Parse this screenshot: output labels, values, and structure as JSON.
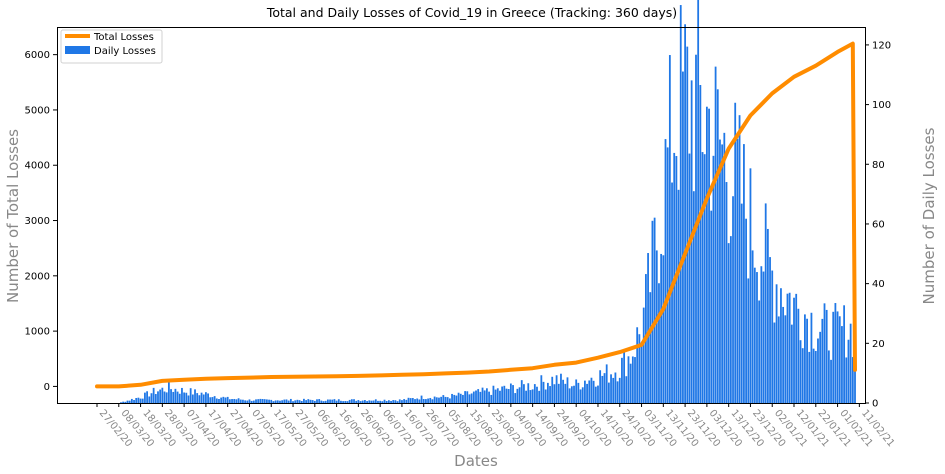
{
  "chart_data": {
    "type": "bar",
    "title": "Total and Daily Losses of Covid_19 in Greece (Tracking: 360 days)",
    "xlabel": "Dates",
    "ylabel_left": "Number of Total Losses",
    "ylabel_right": "Number of Daily Losses",
    "ylim_left": [
      -300,
      6500
    ],
    "ylim_right": [
      0,
      126
    ],
    "yticks_left": [
      0,
      1000,
      2000,
      3000,
      4000,
      5000,
      6000
    ],
    "yticks_right": [
      0,
      20,
      40,
      60,
      80,
      100,
      120
    ],
    "x_tick_labels": [
      "27/02/20",
      "08/03/20",
      "18/03/20",
      "28/03/20",
      "07/04/20",
      "17/04/20",
      "27/04/20",
      "07/05/20",
      "17/05/20",
      "27/05/20",
      "06/06/20",
      "16/06/20",
      "26/06/20",
      "06/07/20",
      "16/07/20",
      "26/07/20",
      "05/08/20",
      "15/08/20",
      "25/08/20",
      "04/09/20",
      "14/09/20",
      "24/09/20",
      "04/10/20",
      "14/10/20",
      "24/10/20",
      "03/11/20",
      "13/11/20",
      "23/11/20",
      "03/12/20",
      "13/12/20",
      "23/12/20",
      "02/01/21",
      "12/01/21",
      "22/01/21",
      "01/02/21",
      "11/02/21"
    ],
    "legend": {
      "position": "top-left",
      "entries": [
        "Total Losses",
        "Daily Losses"
      ]
    },
    "grid": false,
    "series": [
      {
        "name": "Total Losses",
        "kind": "line",
        "axis": "left",
        "color": "#ff8c00",
        "x_day": [
          0,
          10,
          20,
          30,
          40,
          50,
          60,
          70,
          80,
          90,
          100,
          110,
          120,
          130,
          140,
          150,
          160,
          170,
          180,
          190,
          200,
          210,
          220,
          230,
          240,
          250,
          260,
          270,
          280,
          290,
          300,
          310,
          320,
          330,
          340,
          347,
          348
        ],
        "values": [
          0,
          0,
          30,
          100,
          120,
          140,
          150,
          160,
          170,
          175,
          180,
          185,
          190,
          200,
          210,
          220,
          235,
          250,
          270,
          300,
          330,
          390,
          430,
          520,
          620,
          750,
          1400,
          2400,
          3400,
          4300,
          4900,
          5300,
          5600,
          5800,
          6050,
          6200,
          300
        ]
      },
      {
        "name": "Daily Losses",
        "kind": "bar",
        "axis": "right",
        "color": "#1f77e6",
        "trend_days": [
          0,
          10,
          20,
          27,
          33,
          40,
          50,
          60,
          70,
          80,
          90,
          100,
          110,
          120,
          130,
          140,
          150,
          160,
          170,
          180,
          190,
          200,
          205,
          210,
          215,
          220,
          225,
          230,
          235,
          240,
          245,
          250,
          255,
          260,
          265,
          270,
          275,
          280,
          285,
          290,
          295,
          300,
          305,
          310,
          315,
          320,
          325,
          330,
          335,
          340,
          345,
          348
        ],
        "trend_values": [
          0,
          0,
          2,
          4,
          5,
          4,
          3,
          1.5,
          1,
          1,
          1,
          1,
          1,
          1,
          1,
          1,
          2,
          2,
          3,
          4,
          5,
          6,
          7,
          8,
          7,
          6,
          8,
          9,
          10,
          12,
          16,
          25,
          45,
          70,
          95,
          103,
          100,
          95,
          88,
          80,
          72,
          60,
          52,
          43,
          38,
          33,
          30,
          26,
          24,
          24,
          25,
          23
        ]
      }
    ]
  }
}
